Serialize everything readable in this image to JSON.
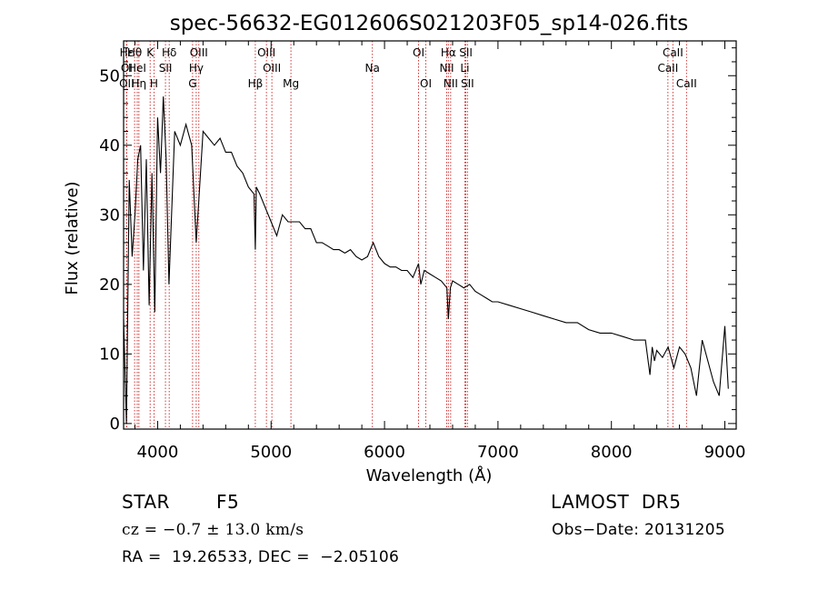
{
  "chart_data": {
    "type": "line",
    "title": "spec-56632-EG012606S021203F05_sp14-026.fits",
    "xlabel": "Wavelength (Å)",
    "ylabel": "Flux (relative)",
    "xlim": [
      3700,
      9100
    ],
    "ylim": [
      -0.8,
      55
    ],
    "xticks": [
      4000,
      5000,
      6000,
      7000,
      8000,
      9000
    ],
    "yticks": [
      0,
      10,
      20,
      30,
      40,
      50
    ],
    "series": [
      {
        "x": [
          3700,
          3725,
          3750,
          3775,
          3800,
          3825,
          3850,
          3875,
          3900,
          3925,
          3950,
          3975,
          4000,
          4025,
          4050,
          4075,
          4100,
          4150,
          4200,
          4250,
          4300,
          4340,
          4400,
          4450,
          4500,
          4550,
          4600,
          4650,
          4700,
          4750,
          4800,
          4850,
          4861,
          4870,
          4900,
          4950,
          5000,
          5050,
          5100,
          5150,
          5200,
          5250,
          5300,
          5350,
          5400,
          5450,
          5500,
          5550,
          5600,
          5650,
          5700,
          5750,
          5800,
          5850,
          5900,
          5950,
          6000,
          6050,
          6100,
          6150,
          6200,
          6250,
          6300,
          6320,
          6350,
          6400,
          6450,
          6500,
          6550,
          6563,
          6580,
          6600,
          6650,
          6700,
          6750,
          6800,
          6850,
          6900,
          6950,
          7000,
          7100,
          7200,
          7300,
          7400,
          7500,
          7600,
          7700,
          7800,
          7900,
          8000,
          8100,
          8200,
          8300,
          8340,
          8360,
          8380,
          8400,
          8450,
          8500,
          8550,
          8600,
          8650,
          8700,
          8750,
          8800,
          8850,
          8900,
          8950,
          9000,
          9030
        ],
        "y": [
          15,
          0,
          35,
          24,
          30,
          38,
          40,
          22,
          38,
          17,
          36,
          16,
          44,
          36,
          47,
          38,
          20,
          42,
          40,
          43,
          40,
          26,
          42,
          41,
          40,
          41,
          39,
          39,
          37,
          36,
          34,
          33,
          25,
          34,
          33,
          31,
          29,
          27,
          30,
          29,
          29,
          29,
          28,
          28,
          26,
          26,
          25.5,
          25,
          25,
          24.5,
          25,
          24,
          23.5,
          24,
          26,
          24,
          23,
          22.5,
          22.5,
          22,
          22,
          21,
          23,
          20,
          22,
          21.5,
          21,
          20.5,
          19.5,
          15,
          19.5,
          20.5,
          20,
          19.5,
          20,
          19,
          18.5,
          18,
          17.5,
          17.5,
          17,
          16.5,
          16,
          15.5,
          15,
          14.5,
          14.5,
          13.5,
          13,
          13,
          12.5,
          12,
          12,
          7,
          11,
          9,
          10.5,
          9.5,
          11,
          8,
          11,
          10,
          8,
          4,
          12,
          9,
          6,
          4,
          14,
          5
        ]
      }
    ],
    "lines": [
      {
        "label": "Hε",
        "x": 3727,
        "row": 0
      },
      {
        "label": "OI",
        "x": 3727,
        "row": 1
      },
      {
        "label": "OII",
        "x": 3727,
        "row": 2
      },
      {
        "label": "Hθ",
        "x": 3797,
        "row": 0
      },
      {
        "label": "HeI",
        "x": 3820,
        "row": 1
      },
      {
        "label": "Hη",
        "x": 3835,
        "row": 2
      },
      {
        "label": "K",
        "x": 3934,
        "row": 0
      },
      {
        "label": "SII",
        "x": 4069,
        "row": 1
      },
      {
        "label": "H",
        "x": 3968,
        "row": 2
      },
      {
        "label": "Hδ",
        "x": 4102,
        "row": 0
      },
      {
        "label": "OIII",
        "x": 4363,
        "row": 0
      },
      {
        "label": "Hγ",
        "x": 4340,
        "row": 1
      },
      {
        "label": "G",
        "x": 4308,
        "row": 2
      },
      {
        "label": "OIII",
        "x": 4959,
        "row": 0
      },
      {
        "label": "OIII",
        "x": 5007,
        "row": 1
      },
      {
        "label": "Hβ",
        "x": 4861,
        "row": 2
      },
      {
        "label": "Mg",
        "x": 5175,
        "row": 2
      },
      {
        "label": "Na",
        "x": 5893,
        "row": 1
      },
      {
        "label": "OI",
        "x": 6300,
        "row": 0
      },
      {
        "label": "OI",
        "x": 6364,
        "row": 2
      },
      {
        "label": "Hα",
        "x": 6563,
        "row": 0
      },
      {
        "label": "NII",
        "x": 6548,
        "row": 1
      },
      {
        "label": "NII",
        "x": 6583,
        "row": 2
      },
      {
        "label": "SII",
        "x": 6717,
        "row": 0
      },
      {
        "label": "Li",
        "x": 6708,
        "row": 1
      },
      {
        "label": "SII",
        "x": 6731,
        "row": 2
      },
      {
        "label": "CaII",
        "x": 8542,
        "row": 0
      },
      {
        "label": "CaII",
        "x": 8498,
        "row": 1
      },
      {
        "label": "CaII",
        "x": 8662,
        "row": 2
      }
    ]
  },
  "info": {
    "object_class": "STAR",
    "subclass": "F5",
    "survey": "LAMOST  DR5",
    "cz_text": "cz = −0.7 ± 13.0 km/s",
    "obs_date": "Obs−Date: 20131205",
    "coords": "RA =  19.26533, DEC =  −2.05106"
  },
  "colors": {
    "spectrum": "#000000",
    "line_marker": "#cc2222",
    "axis": "#000000"
  }
}
